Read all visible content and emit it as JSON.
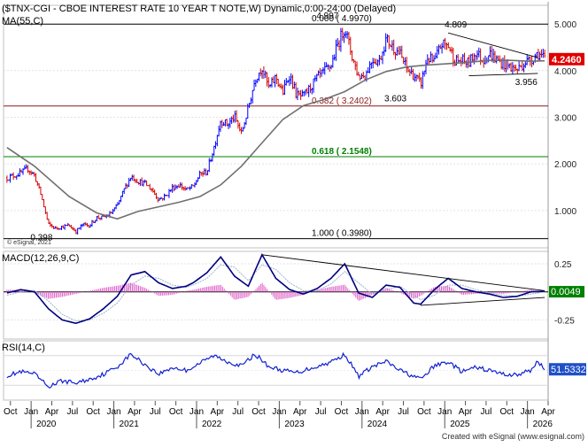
{
  "header": {
    "title": "($TNX-CGI - CBOE INTEREST RATE 10 YEAR T NOTE,W) Dynamic,0:00-24:00 (Delayed)",
    "ma_label": "MA(55,C)",
    "copyright_small": "© eSignal, 2021",
    "footer_copyright": "Created with eSignal (www.esignal.com)"
  },
  "colors": {
    "up": "#0000ff",
    "down": "#d40000",
    "ma": "#707070",
    "fib_red": "#8b1a1a",
    "fib_green": "#008000",
    "macd": "#000080",
    "signal": "#9ab4cc",
    "hist": "#e060c8",
    "rsi": "#1020d0",
    "price_tag": "#e00000",
    "macd_tag": "#008000",
    "rsi_tag": "#2050c8"
  },
  "chart_data": [
    {
      "type": "candlestick",
      "title": "($TNX-CGI - CBOE INTEREST RATE 10 YEAR T NOTE,W) Dynamic,0:00-24:00 (Delayed)",
      "x_range": [
        "2019-09",
        "2026-04"
      ],
      "ylim": [
        0.2,
        5.4
      ],
      "y_ticks": [
        "1.000",
        "2.000",
        "3.000",
        "4.000",
        "5.000"
      ],
      "x_month_labels": [
        "Oct",
        "Jan",
        "Apr",
        "Jul",
        "Oct",
        "Jan",
        "Apr",
        "Jul",
        "Oct",
        "Jan",
        "Apr",
        "Jul",
        "Oct",
        "Jan",
        "Apr",
        "Jul",
        "Oct",
        "Jan",
        "Apr",
        "Jul",
        "Oct",
        "Jan",
        "Apr",
        "Jul",
        "Oct",
        "Jan",
        "Apr"
      ],
      "x_year_labels": [
        "2020",
        "2021",
        "2022",
        "2023",
        "2024",
        "2025",
        "2026"
      ],
      "close_path": [
        [
          "2019-09",
          1.7
        ],
        [
          "2019-10",
          1.75
        ],
        [
          "2019-11",
          1.8
        ],
        [
          "2019-12",
          1.9
        ],
        [
          "2020-01",
          1.75
        ],
        [
          "2020-02",
          1.3
        ],
        [
          "2020-03",
          0.7
        ],
        [
          "2020-04",
          0.62
        ],
        [
          "2020-05",
          0.65
        ],
        [
          "2020-06",
          0.68
        ],
        [
          "2020-07",
          0.55
        ],
        [
          "2020-08",
          0.7
        ],
        [
          "2020-09",
          0.68
        ],
        [
          "2020-10",
          0.85
        ],
        [
          "2020-11",
          0.85
        ],
        [
          "2020-12",
          0.93
        ],
        [
          "2021-01",
          1.1
        ],
        [
          "2021-02",
          1.45
        ],
        [
          "2021-03",
          1.74
        ],
        [
          "2021-04",
          1.63
        ],
        [
          "2021-05",
          1.58
        ],
        [
          "2021-06",
          1.45
        ],
        [
          "2021-07",
          1.24
        ],
        [
          "2021-08",
          1.31
        ],
        [
          "2021-09",
          1.49
        ],
        [
          "2021-10",
          1.55
        ],
        [
          "2021-11",
          1.44
        ],
        [
          "2021-12",
          1.51
        ],
        [
          "2022-01",
          1.78
        ],
        [
          "2022-02",
          1.83
        ],
        [
          "2022-03",
          2.34
        ],
        [
          "2022-04",
          2.94
        ],
        [
          "2022-05",
          2.84
        ],
        [
          "2022-06",
          3.01
        ],
        [
          "2022-07",
          2.65
        ],
        [
          "2022-08",
          3.19
        ],
        [
          "2022-09",
          3.83
        ],
        [
          "2022-10",
          4.08
        ],
        [
          "2022-11",
          3.61
        ],
        [
          "2022-12",
          3.87
        ],
        [
          "2023-01",
          3.52
        ],
        [
          "2023-02",
          3.92
        ],
        [
          "2023-03",
          3.47
        ],
        [
          "2023-04",
          3.44
        ],
        [
          "2023-05",
          3.64
        ],
        [
          "2023-06",
          3.84
        ],
        [
          "2023-07",
          3.97
        ],
        [
          "2023-08",
          4.11
        ],
        [
          "2023-09",
          4.57
        ],
        [
          "2023-10",
          4.93
        ],
        [
          "2023-11",
          4.33
        ],
        [
          "2023-12",
          3.88
        ],
        [
          "2024-01",
          3.91
        ],
        [
          "2024-02",
          4.25
        ],
        [
          "2024-03",
          4.2
        ],
        [
          "2024-04",
          4.68
        ],
        [
          "2024-05",
          4.5
        ],
        [
          "2024-06",
          4.36
        ],
        [
          "2024-07",
          4.03
        ],
        [
          "2024-08",
          3.9
        ],
        [
          "2024-09",
          3.7
        ],
        [
          "2024-10",
          4.28
        ],
        [
          "2024-11",
          4.18
        ],
        [
          "2024-12",
          4.57
        ],
        [
          "2025-01",
          4.54
        ],
        [
          "2025-02",
          4.21
        ],
        [
          "2025-03",
          4.21
        ],
        [
          "2025-04",
          4.16
        ],
        [
          "2025-05",
          4.4
        ],
        [
          "2025-06",
          4.23
        ],
        [
          "2025-07",
          4.37
        ],
        [
          "2025-08",
          4.23
        ],
        [
          "2025-09",
          4.15
        ],
        [
          "2025-10",
          4.08
        ],
        [
          "2025-11",
          4.02
        ],
        [
          "2025-12",
          4.17
        ],
        [
          "2026-01",
          4.24
        ],
        [
          "2026-02",
          4.38
        ],
        [
          "2026-03",
          4.246
        ]
      ],
      "ma_55": [
        [
          "2019-09",
          2.35
        ],
        [
          "2020-01",
          1.95
        ],
        [
          "2020-06",
          1.3
        ],
        [
          "2020-10",
          0.95
        ],
        [
          "2021-01",
          0.82
        ],
        [
          "2021-04",
          0.98
        ],
        [
          "2021-07",
          1.08
        ],
        [
          "2021-10",
          1.18
        ],
        [
          "2022-01",
          1.3
        ],
        [
          "2022-04",
          1.55
        ],
        [
          "2022-07",
          1.95
        ],
        [
          "2022-10",
          2.45
        ],
        [
          "2023-01",
          2.95
        ],
        [
          "2023-04",
          3.25
        ],
        [
          "2023-07",
          3.38
        ],
        [
          "2023-10",
          3.55
        ],
        [
          "2024-01",
          3.8
        ],
        [
          "2024-04",
          3.98
        ],
        [
          "2024-07",
          4.08
        ],
        [
          "2024-10",
          4.12
        ],
        [
          "2025-01",
          4.15
        ],
        [
          "2025-04",
          4.18
        ],
        [
          "2025-07",
          4.22
        ],
        [
          "2025-10",
          4.22
        ],
        [
          "2026-01",
          4.2
        ],
        [
          "2026-03",
          4.21
        ]
      ],
      "fibonacci": [
        {
          "label": "0.000 ( 4.9970)",
          "value": 4.997
        },
        {
          "label": "0.382 ( 3.2402)",
          "value": 3.2402
        },
        {
          "label": "0.618 ( 2.1548)",
          "value": 2.1548
        },
        {
          "label": "1.000 ( 0.3980)",
          "value": 0.398
        }
      ],
      "annotations": [
        {
          "text": "0.398",
          "date": "2020-04",
          "value": 0.398
        },
        {
          "text": "4.997",
          "date": "2023-10",
          "value": 4.997
        },
        {
          "text": "3.603",
          "date": "2024-04",
          "value": 3.603
        },
        {
          "text": "4.809",
          "date": "2025-01",
          "value": 4.809
        },
        {
          "text": "3.956",
          "date": "2025-12",
          "value": 3.956
        }
      ],
      "trendlines": [
        {
          "from": [
            "2025-01",
            4.809
          ],
          "to": [
            "2026-02",
            4.28
          ]
        },
        {
          "from": [
            "2025-04",
            3.89
          ],
          "to": [
            "2026-02",
            3.94
          ]
        }
      ],
      "last_value": "4.2460"
    },
    {
      "type": "line",
      "title": "MACD(12,26,9,C)",
      "ylim": [
        -0.42,
        0.36
      ],
      "y_ticks": [
        "0.25",
        "0.00",
        "-0.25"
      ],
      "series": [
        {
          "values": [
            [
              "2019-09",
              -0.01
            ],
            [
              "2019-11",
              0.02
            ],
            [
              "2020-01",
              0.0
            ],
            [
              "2020-03",
              -0.15
            ],
            [
              "2020-05",
              -0.25
            ],
            [
              "2020-07",
              -0.28
            ],
            [
              "2020-09",
              -0.24
            ],
            [
              "2020-11",
              -0.15
            ],
            [
              "2021-01",
              -0.04
            ],
            [
              "2021-03",
              0.15
            ],
            [
              "2021-05",
              0.18
            ],
            [
              "2021-07",
              0.08
            ],
            [
              "2021-09",
              0.03
            ],
            [
              "2021-11",
              0.05
            ],
            [
              "2021-12",
              0.08
            ],
            [
              "2022-02",
              0.17
            ],
            [
              "2022-04",
              0.31
            ],
            [
              "2022-06",
              0.14
            ],
            [
              "2022-08",
              0.05
            ],
            [
              "2022-10",
              0.33
            ],
            [
              "2022-12",
              0.12
            ],
            [
              "2023-02",
              0.02
            ],
            [
              "2023-04",
              -0.02
            ],
            [
              "2023-06",
              0.03
            ],
            [
              "2023-08",
              0.12
            ],
            [
              "2023-10",
              0.25
            ],
            [
              "2023-12",
              -0.01
            ],
            [
              "2024-02",
              -0.05
            ],
            [
              "2024-04",
              0.06
            ],
            [
              "2024-06",
              0.04
            ],
            [
              "2024-08",
              -0.1
            ],
            [
              "2024-09",
              -0.11
            ],
            [
              "2024-11",
              0.02
            ],
            [
              "2025-01",
              0.12
            ],
            [
              "2025-03",
              0.03
            ],
            [
              "2025-05",
              0.0
            ],
            [
              "2025-07",
              -0.02
            ],
            [
              "2025-09",
              -0.05
            ],
            [
              "2025-11",
              -0.04
            ],
            [
              "2026-01",
              0.0
            ],
            [
              "2026-03",
              0.0049
            ]
          ]
        },
        {
          "values": [
            [
              "2019-09",
              -0.03
            ],
            [
              "2019-11",
              0.0
            ],
            [
              "2020-01",
              0.01
            ],
            [
              "2020-03",
              -0.08
            ],
            [
              "2020-05",
              -0.2
            ],
            [
              "2020-07",
              -0.26
            ],
            [
              "2020-09",
              -0.25
            ],
            [
              "2020-11",
              -0.19
            ],
            [
              "2021-01",
              -0.1
            ],
            [
              "2021-03",
              0.06
            ],
            [
              "2021-05",
              0.14
            ],
            [
              "2021-07",
              0.12
            ],
            [
              "2021-09",
              0.06
            ],
            [
              "2021-11",
              0.04
            ],
            [
              "2021-12",
              0.06
            ],
            [
              "2022-02",
              0.12
            ],
            [
              "2022-04",
              0.24
            ],
            [
              "2022-06",
              0.22
            ],
            [
              "2022-08",
              0.1
            ],
            [
              "2022-10",
              0.24
            ],
            [
              "2022-12",
              0.2
            ],
            [
              "2023-02",
              0.08
            ],
            [
              "2023-04",
              0.01
            ],
            [
              "2023-06",
              0.01
            ],
            [
              "2023-08",
              0.07
            ],
            [
              "2023-10",
              0.18
            ],
            [
              "2023-12",
              0.08
            ],
            [
              "2024-02",
              -0.02
            ],
            [
              "2024-04",
              0.02
            ],
            [
              "2024-06",
              0.05
            ],
            [
              "2024-08",
              -0.03
            ],
            [
              "2024-09",
              -0.07
            ],
            [
              "2024-11",
              -0.03
            ],
            [
              "2025-01",
              0.06
            ],
            [
              "2025-03",
              0.06
            ],
            [
              "2025-05",
              0.02
            ],
            [
              "2025-07",
              -0.01
            ],
            [
              "2025-09",
              -0.03
            ],
            [
              "2025-11",
              -0.04
            ],
            [
              "2026-01",
              -0.02
            ],
            [
              "2026-03",
              0.0
            ]
          ]
        }
      ],
      "last_value": "0.0049"
    },
    {
      "type": "line",
      "title": "RSI(14,C)",
      "ylim": [
        10,
        90
      ],
      "reference_lines": [
        30,
        70
      ],
      "series": [
        {
          "values": [
            [
              "2019-09",
              43
            ],
            [
              "2019-11",
              48
            ],
            [
              "2020-01",
              45
            ],
            [
              "2020-03",
              28
            ],
            [
              "2020-05",
              36
            ],
            [
              "2020-07",
              33
            ],
            [
              "2020-09",
              38
            ],
            [
              "2020-11",
              45
            ],
            [
              "2021-01",
              55
            ],
            [
              "2021-03",
              72
            ],
            [
              "2021-05",
              58
            ],
            [
              "2021-07",
              45
            ],
            [
              "2021-09",
              54
            ],
            [
              "2021-11",
              50
            ],
            [
              "2022-01",
              60
            ],
            [
              "2022-03",
              70
            ],
            [
              "2022-05",
              62
            ],
            [
              "2022-07",
              56
            ],
            [
              "2022-09",
              72
            ],
            [
              "2022-11",
              55
            ],
            [
              "2023-01",
              50
            ],
            [
              "2023-03",
              47
            ],
            [
              "2023-05",
              53
            ],
            [
              "2023-07",
              58
            ],
            [
              "2023-09",
              66
            ],
            [
              "2023-10",
              72
            ],
            [
              "2023-12",
              42
            ],
            [
              "2024-02",
              55
            ],
            [
              "2024-04",
              62
            ],
            [
              "2024-06",
              50
            ],
            [
              "2024-08",
              42
            ],
            [
              "2024-09",
              38
            ],
            [
              "2024-11",
              56
            ],
            [
              "2025-01",
              62
            ],
            [
              "2025-03",
              48
            ],
            [
              "2025-05",
              54
            ],
            [
              "2025-07",
              50
            ],
            [
              "2025-09",
              45
            ],
            [
              "2025-11",
              44
            ],
            [
              "2026-01",
              50
            ],
            [
              "2026-02",
              63
            ],
            [
              "2026-03",
              51.5332
            ]
          ]
        }
      ],
      "last_value": "51.5332"
    }
  ]
}
